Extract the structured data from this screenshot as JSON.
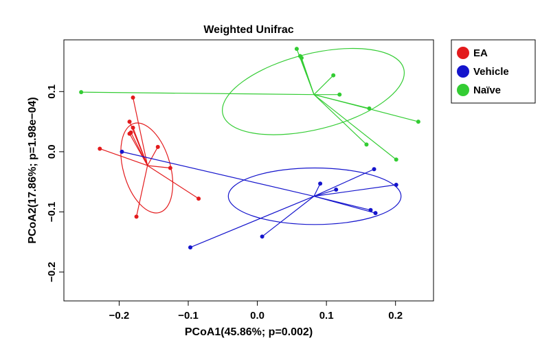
{
  "chart_data": {
    "type": "scatter",
    "title": "Weighted Unifrac",
    "xlabel": "PCoA1(45.86%; p=0.002)",
    "ylabel": "PCoA2(17.86%; p=1.98e−04)",
    "xlim": [
      -0.28,
      0.255
    ],
    "ylim": [
      -0.248,
      0.186
    ],
    "xticks": [
      -0.2,
      -0.1,
      0.0,
      0.1,
      0.2
    ],
    "xtick_labels": [
      "−0.2",
      "−0.1",
      "0.0",
      "0.1",
      "0.2"
    ],
    "yticks": [
      -0.2,
      -0.1,
      0.0,
      0.1
    ],
    "ytick_labels": [
      "−0.2",
      "−0.1",
      "0.0",
      "0.1"
    ],
    "grid": false,
    "legend_position": "right",
    "series": [
      {
        "name": "EA",
        "color": "#e31a1c",
        "centroid": [
          -0.159,
          -0.023
        ],
        "ellipse": {
          "center": [
            -0.16,
            -0.027
          ],
          "rx": 0.034,
          "ry": 0.077,
          "rotation_deg": -16
        },
        "points": [
          [
            -0.18,
            0.09
          ],
          [
            -0.185,
            0.05
          ],
          [
            -0.18,
            0.04
          ],
          [
            -0.183,
            0.032
          ],
          [
            -0.185,
            0.03
          ],
          [
            -0.228,
            0.005
          ],
          [
            -0.144,
            0.008
          ],
          [
            -0.126,
            -0.027
          ],
          [
            -0.175,
            -0.108
          ],
          [
            -0.085,
            -0.078
          ]
        ]
      },
      {
        "name": "Vehicle",
        "color": "#1414cc",
        "centroid": [
          0.082,
          -0.074
        ],
        "ellipse": {
          "center": [
            0.083,
            -0.074
          ],
          "rx": 0.125,
          "ry": 0.047,
          "rotation_deg": 0
        },
        "points": [
          [
            -0.196,
            0.0
          ],
          [
            -0.097,
            -0.159
          ],
          [
            0.007,
            -0.141
          ],
          [
            0.091,
            -0.053
          ],
          [
            0.114,
            -0.063
          ],
          [
            0.169,
            -0.029
          ],
          [
            0.201,
            -0.055
          ],
          [
            0.164,
            -0.097
          ],
          [
            0.171,
            -0.102
          ]
        ]
      },
      {
        "name": "Naïve",
        "color": "#33cc33",
        "centroid": [
          0.082,
          0.095
        ],
        "ellipse": {
          "center": [
            0.081,
            0.1
          ],
          "rx": 0.135,
          "ry": 0.063,
          "rotation_deg": -14
        },
        "points": [
          [
            -0.255,
            0.099
          ],
          [
            0.057,
            0.171
          ],
          [
            0.062,
            0.159
          ],
          [
            0.064,
            0.156
          ],
          [
            0.11,
            0.127
          ],
          [
            0.119,
            0.095
          ],
          [
            0.162,
            0.072
          ],
          [
            0.233,
            0.05
          ],
          [
            0.158,
            0.012
          ],
          [
            0.201,
            -0.013
          ]
        ]
      }
    ]
  }
}
